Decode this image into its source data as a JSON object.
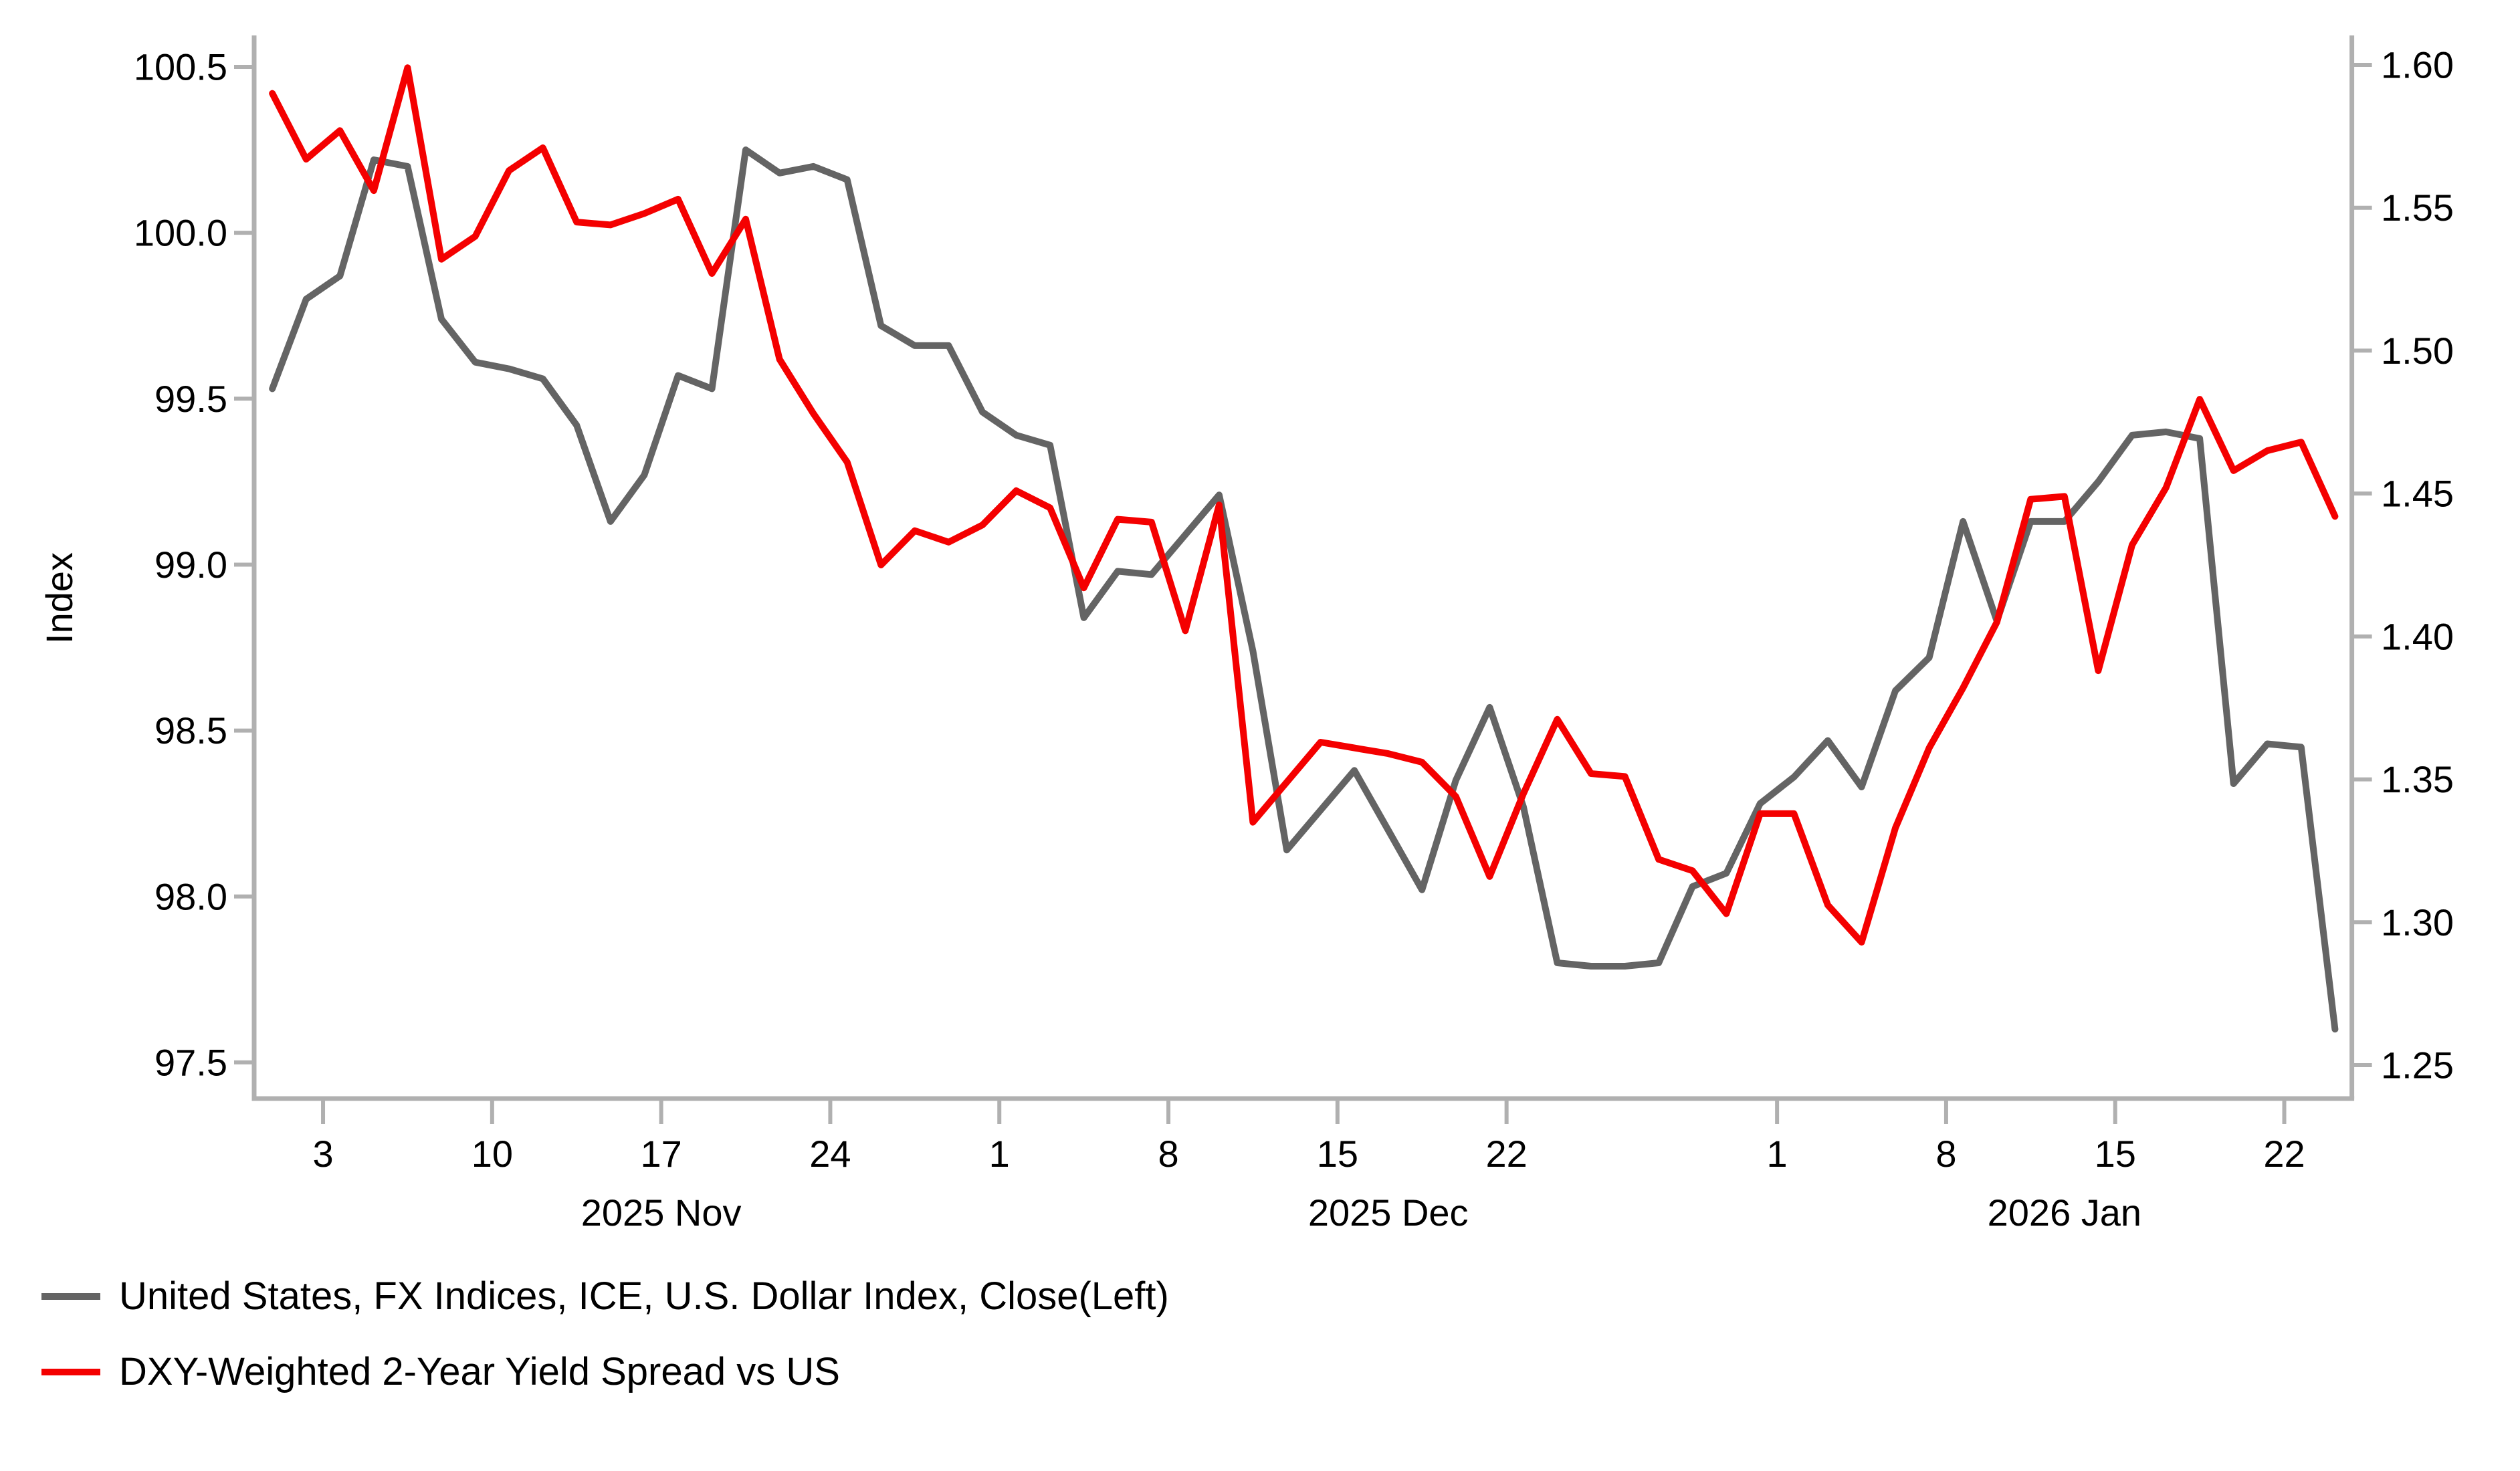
{
  "legend": {
    "items": [
      {
        "label": "United States, FX Indices, ICE, U.S. Dollar Index, Close(Left)",
        "color": "#646464"
      },
      {
        "label": "DXY-Weighted 2-Year Yield Spread vs US",
        "color": "#f40000"
      }
    ]
  },
  "chart_data": {
    "type": "line",
    "title": "",
    "x_axis": {
      "dates": [
        "2025-10-30",
        "2025-10-31",
        "2025-11-03",
        "2025-11-04",
        "2025-11-05",
        "2025-11-06",
        "2025-11-07",
        "2025-11-10",
        "2025-11-11",
        "2025-11-12",
        "2025-11-13",
        "2025-11-14",
        "2025-11-17",
        "2025-11-18",
        "2025-11-19",
        "2025-11-20",
        "2025-11-21",
        "2025-11-24",
        "2025-11-25",
        "2025-11-26",
        "2025-11-27",
        "2025-11-28",
        "2025-12-01",
        "2025-12-02",
        "2025-12-03",
        "2025-12-04",
        "2025-12-05",
        "2025-12-08",
        "2025-12-09",
        "2025-12-10",
        "2025-12-11",
        "2025-12-12",
        "2025-12-15",
        "2025-12-16",
        "2025-12-17",
        "2025-12-18",
        "2025-12-19",
        "2025-12-22",
        "2025-12-23",
        "2025-12-24",
        "2025-12-25",
        "2025-12-26",
        "2025-12-29",
        "2025-12-30",
        "2025-12-31",
        "2026-01-01",
        "2026-01-02",
        "2026-01-05",
        "2026-01-06",
        "2026-01-07",
        "2026-01-08",
        "2026-01-09",
        "2026-01-12",
        "2026-01-13",
        "2026-01-14",
        "2026-01-15",
        "2026-01-16",
        "2026-01-19",
        "2026-01-20",
        "2026-01-21",
        "2026-01-22",
        "2026-01-23"
      ],
      "ticks": [
        {
          "label": "3",
          "index": 2
        },
        {
          "label": "10",
          "index": 7
        },
        {
          "label": "17",
          "index": 12
        },
        {
          "label": "24",
          "index": 17
        },
        {
          "label": "1",
          "index": 22
        },
        {
          "label": "8",
          "index": 27
        },
        {
          "label": "15",
          "index": 32
        },
        {
          "label": "22",
          "index": 37
        },
        {
          "label": "1",
          "index": 45
        },
        {
          "label": "8",
          "index": 50
        },
        {
          "label": "15",
          "index": 55
        },
        {
          "label": "22",
          "index": 60
        }
      ],
      "month_labels": [
        {
          "label": "2025 Nov",
          "start_index": 2,
          "end_index": 22
        },
        {
          "label": "2025 Dec",
          "start_index": 22,
          "end_index": 45
        },
        {
          "label": "2026 Jan",
          "start_index": 45,
          "end_index": null
        }
      ]
    },
    "y_left": {
      "title": "Index",
      "ticks": [
        "100.5",
        "100.0",
        "99.5",
        "99.0",
        "98.5",
        "98.0",
        "97.5"
      ],
      "lim": [
        97.5,
        100.5
      ]
    },
    "y_right": {
      "title": "",
      "ticks": [
        "1.60",
        "1.55",
        "1.50",
        "1.45",
        "1.40",
        "1.35",
        "1.30",
        "1.25"
      ],
      "lim": [
        1.25,
        1.6
      ]
    },
    "series": [
      {
        "name": "United States, FX Indices, ICE, U.S. Dollar Index, Close(Left)",
        "axis": "left",
        "color": "#646464",
        "values": [
          99.53,
          99.8,
          99.87,
          100.22,
          100.2,
          99.74,
          99.61,
          99.59,
          99.56,
          99.42,
          99.13,
          99.27,
          99.57,
          99.53,
          100.25,
          100.18,
          100.2,
          100.16,
          99.72,
          99.66,
          99.66,
          99.46,
          99.39,
          99.36,
          98.84,
          98.98,
          98.97,
          99.09,
          99.21,
          98.74,
          98.14,
          98.26,
          98.38,
          98.2,
          98.02,
          98.35,
          98.57,
          98.27,
          97.8,
          97.79,
          97.79,
          97.8,
          98.03,
          98.07,
          98.28,
          98.36,
          98.47,
          98.33,
          98.62,
          98.72,
          99.13,
          98.83,
          99.13,
          99.13,
          99.25,
          99.39,
          99.4,
          99.38,
          98.34,
          98.46,
          98.45,
          97.6
        ]
      },
      {
        "name": "DXY-Weighted 2-Year Yield Spread vs US",
        "axis": "right",
        "color": "#f40000",
        "values": [
          1.59,
          1.567,
          1.577,
          1.556,
          1.599,
          1.532,
          1.54,
          1.563,
          1.571,
          1.545,
          1.544,
          1.548,
          1.553,
          1.527,
          1.546,
          1.497,
          1.478,
          1.461,
          1.425,
          1.437,
          1.433,
          1.439,
          1.451,
          1.445,
          1.417,
          1.441,
          1.44,
          1.402,
          1.446,
          1.335,
          1.349,
          1.363,
          1.361,
          1.359,
          1.356,
          1.344,
          1.316,
          1.345,
          1.371,
          1.352,
          1.351,
          1.322,
          1.318,
          1.303,
          1.338,
          1.338,
          1.306,
          1.293,
          1.333,
          1.361,
          1.382,
          1.405,
          1.448,
          1.449,
          1.388,
          1.432,
          1.452,
          1.483,
          1.458,
          1.465,
          1.468,
          1.442
        ]
      }
    ],
    "legend_position": "bottom-left",
    "grid": false
  }
}
